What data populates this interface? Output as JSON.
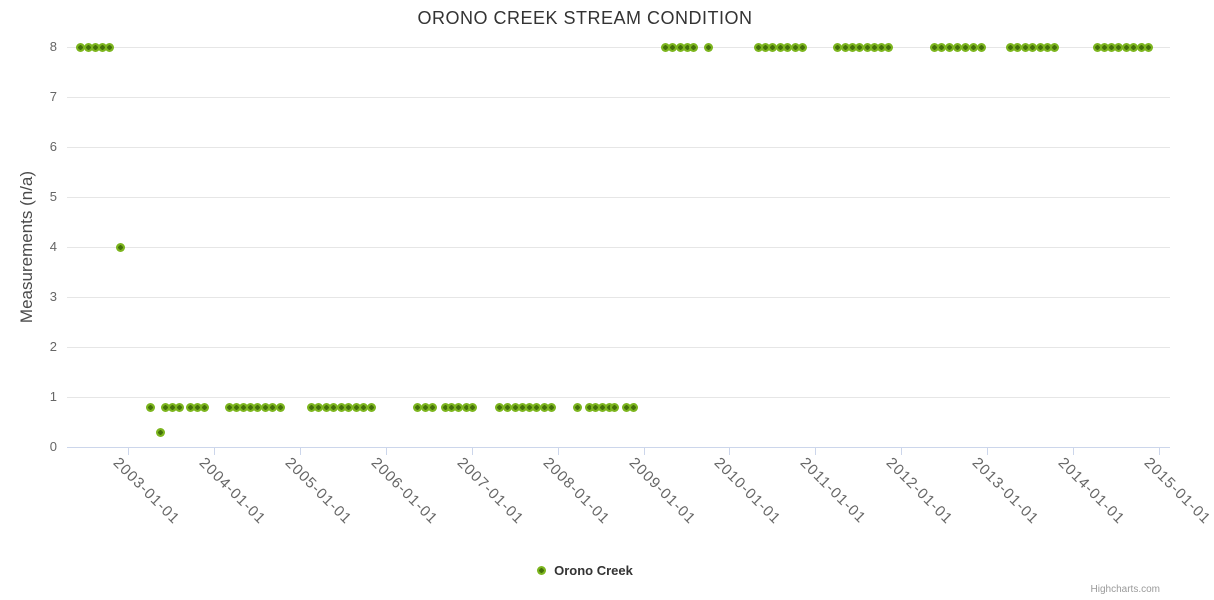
{
  "chart_data": {
    "type": "scatter",
    "title": "ORONO CREEK STREAM CONDITION",
    "xlabel": "",
    "ylabel": "Measurements (n/a)",
    "ylim": [
      0,
      8
    ],
    "yticks": [
      0,
      1,
      2,
      3,
      4,
      5,
      6,
      7,
      8
    ],
    "xticks": [
      "2003-01-01",
      "2004-01-01",
      "2005-01-01",
      "2006-01-01",
      "2007-01-01",
      "2008-01-01",
      "2009-01-01",
      "2010-01-01",
      "2011-01-01",
      "2012-01-01",
      "2013-01-01",
      "2014-01-01",
      "2015-01-01"
    ],
    "grid": "horizontal-only",
    "legend_position": "bottom-center",
    "colors": {
      "point_outer": "#7cb51e",
      "point_inner": "#44700a",
      "grid": "#e6e6e6",
      "axis": "#ccd6eb",
      "title_text": "#333333",
      "y_title_text": "#4a4a4a",
      "axis_label_text": "#666666",
      "credits_text": "#9a9a9a"
    },
    "series": [
      {
        "name": "Orono Creek",
        "points": [
          [
            "2002-06-15",
            8
          ],
          [
            "2002-07-15",
            8
          ],
          [
            "2002-08-15",
            8
          ],
          [
            "2002-09-15",
            8
          ],
          [
            "2002-10-15",
            8
          ],
          [
            "2002-12-01",
            4
          ],
          [
            "2003-04-05",
            0.8
          ],
          [
            "2003-05-18",
            0.3
          ],
          [
            "2003-06-10",
            0.8
          ],
          [
            "2003-07-10",
            0.8
          ],
          [
            "2003-08-10",
            0.8
          ],
          [
            "2003-09-22",
            0.8
          ],
          [
            "2003-10-22",
            0.8
          ],
          [
            "2003-11-22",
            0.8
          ],
          [
            "2004-03-08",
            0.8
          ],
          [
            "2004-04-07",
            0.8
          ],
          [
            "2004-05-07",
            0.8
          ],
          [
            "2004-06-06",
            0.8
          ],
          [
            "2004-07-06",
            0.8
          ],
          [
            "2004-08-08",
            0.8
          ],
          [
            "2004-09-07",
            0.8
          ],
          [
            "2004-10-10",
            0.8
          ],
          [
            "2005-02-18",
            0.8
          ],
          [
            "2005-03-21",
            0.8
          ],
          [
            "2005-04-22",
            0.8
          ],
          [
            "2005-05-24",
            0.8
          ],
          [
            "2005-06-25",
            0.8
          ],
          [
            "2005-07-27",
            0.8
          ],
          [
            "2005-08-28",
            0.8
          ],
          [
            "2005-09-29",
            0.8
          ],
          [
            "2005-10-31",
            0.8
          ],
          [
            "2006-05-17",
            0.8
          ],
          [
            "2006-06-17",
            0.8
          ],
          [
            "2006-07-17",
            0.8
          ],
          [
            "2006-09-10",
            0.8
          ],
          [
            "2006-10-09",
            0.8
          ],
          [
            "2006-11-08",
            0.8
          ],
          [
            "2006-12-08",
            0.8
          ],
          [
            "2007-01-06",
            0.8
          ],
          [
            "2007-05-01",
            0.8
          ],
          [
            "2007-06-01",
            0.8
          ],
          [
            "2007-07-05",
            0.8
          ],
          [
            "2007-08-05",
            0.8
          ],
          [
            "2007-09-05",
            0.8
          ],
          [
            "2007-10-05",
            0.8
          ],
          [
            "2007-11-05",
            0.8
          ],
          [
            "2007-12-05",
            0.8
          ],
          [
            "2008-03-28",
            0.8
          ],
          [
            "2008-05-15",
            0.8
          ],
          [
            "2008-06-12",
            0.8
          ],
          [
            "2008-07-10",
            0.8
          ],
          [
            "2008-08-07",
            0.8
          ],
          [
            "2008-09-01",
            0.8
          ],
          [
            "2008-10-22",
            0.8
          ],
          [
            "2008-11-17",
            0.8
          ],
          [
            "2009-04-05",
            8
          ],
          [
            "2009-05-05",
            8
          ],
          [
            "2009-06-07",
            8
          ],
          [
            "2009-07-05",
            8
          ],
          [
            "2009-08-03",
            8
          ],
          [
            "2009-10-02",
            8
          ],
          [
            "2010-05-03",
            8
          ],
          [
            "2010-06-04",
            8
          ],
          [
            "2010-07-04",
            8
          ],
          [
            "2010-08-06",
            8
          ],
          [
            "2010-09-05",
            8
          ],
          [
            "2010-10-08",
            8
          ],
          [
            "2010-11-08",
            8
          ],
          [
            "2011-04-07",
            8
          ],
          [
            "2011-05-08",
            8
          ],
          [
            "2011-06-08",
            8
          ],
          [
            "2011-07-09",
            8
          ],
          [
            "2011-08-09",
            8
          ],
          [
            "2011-09-09",
            8
          ],
          [
            "2011-10-10",
            8
          ],
          [
            "2011-11-06",
            8
          ],
          [
            "2012-05-23",
            8
          ],
          [
            "2012-06-22",
            8
          ],
          [
            "2012-07-25",
            8
          ],
          [
            "2012-08-28",
            8
          ],
          [
            "2012-10-01",
            8
          ],
          [
            "2012-11-03",
            8
          ],
          [
            "2012-12-06",
            8
          ],
          [
            "2013-04-09",
            8
          ],
          [
            "2013-05-09",
            8
          ],
          [
            "2013-06-12",
            8
          ],
          [
            "2013-07-12",
            8
          ],
          [
            "2013-08-15",
            8
          ],
          [
            "2013-09-14",
            8
          ],
          [
            "2013-10-14",
            8
          ],
          [
            "2014-04-13",
            8
          ],
          [
            "2014-05-13",
            8
          ],
          [
            "2014-06-12",
            8
          ],
          [
            "2014-07-12",
            8
          ],
          [
            "2014-08-15",
            8
          ],
          [
            "2014-09-14",
            8
          ],
          [
            "2014-10-18",
            8
          ],
          [
            "2014-11-17",
            8
          ]
        ]
      }
    ]
  },
  "legend": {
    "series_label": "Orono Creek"
  },
  "credits": {
    "label": "Highcharts.com"
  }
}
